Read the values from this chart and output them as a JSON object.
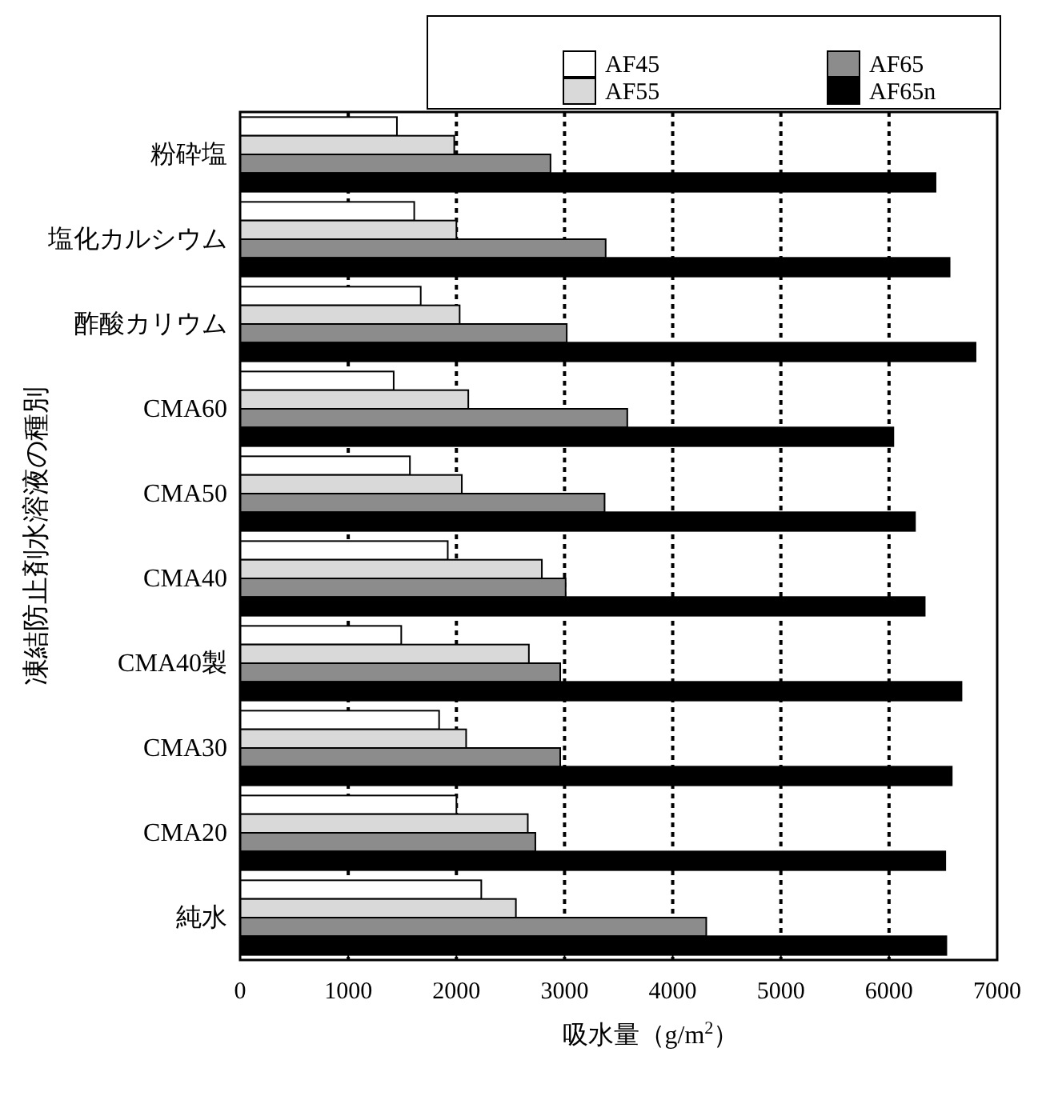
{
  "chart_data": {
    "type": "bar",
    "orientation": "horizontal",
    "xlabel": "吸水量（g/m$^{2}$）",
    "ylabel": "凍結防止剤水溶液の種別",
    "categories": [
      "粉砕塩",
      "塩化カルシウム",
      "酢酸カリウム",
      "CMA60",
      "CMA50",
      "CMA40",
      "CMA40製",
      "CMA30",
      "CMA20",
      "純水"
    ],
    "series": [
      {
        "name": "AF45",
        "color": "#ffffff",
        "values": [
          1450,
          1610,
          1670,
          1420,
          1570,
          1920,
          1490,
          1840,
          2000,
          2230
        ]
      },
      {
        "name": "AF55",
        "color": "#d9d9d9",
        "values": [
          1980,
          2000,
          2030,
          2110,
          2050,
          2790,
          2670,
          2090,
          2660,
          2550
        ]
      },
      {
        "name": "AF65",
        "color": "#8c8c8c",
        "values": [
          2870,
          3380,
          3020,
          3580,
          3370,
          3010,
          2960,
          2960,
          2730,
          4310
        ]
      },
      {
        "name": "AF65n",
        "color": "#000000",
        "values": [
          6430,
          6560,
          6800,
          6040,
          6240,
          6330,
          6670,
          6580,
          6520,
          6530
        ]
      }
    ],
    "xlim": [
      0,
      7000
    ],
    "xticks": [
      0,
      1000,
      2000,
      3000,
      4000,
      5000,
      6000,
      7000
    ],
    "grid": "x",
    "legend": "top right"
  }
}
